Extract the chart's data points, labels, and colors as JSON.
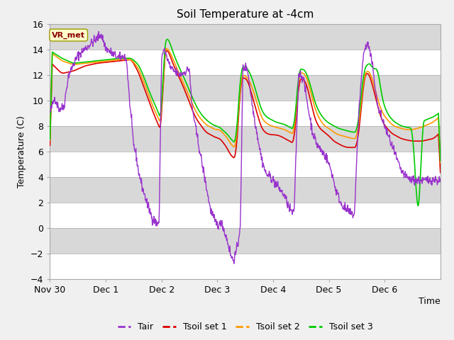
{
  "title": "Soil Temperature at -4cm",
  "xlabel": "Time",
  "ylabel": "Temperature (C)",
  "ylim": [
    -4,
    16
  ],
  "yticks": [
    -4,
    -2,
    0,
    2,
    4,
    6,
    8,
    10,
    12,
    14,
    16
  ],
  "x_labels": [
    "Nov 30",
    "Dec 1",
    "Dec 2",
    "Dec 3",
    "Dec 4",
    "Dec 5",
    "Dec 6"
  ],
  "annotation_text": "VR_met",
  "colors": {
    "Tair": "#9933cc",
    "Tsoil_set1": "#dd0000",
    "Tsoil_set2": "#ff9900",
    "Tsoil_set3": "#00cc00"
  },
  "fig_bg": "#f0f0f0",
  "plot_bg": "#e8e8e8",
  "band_light": "#e8e8e8",
  "band_dark": "#d8d8d8",
  "legend_labels": [
    "Tair",
    "Tsoil set 1",
    "Tsoil set 2",
    "Tsoil set 3"
  ]
}
